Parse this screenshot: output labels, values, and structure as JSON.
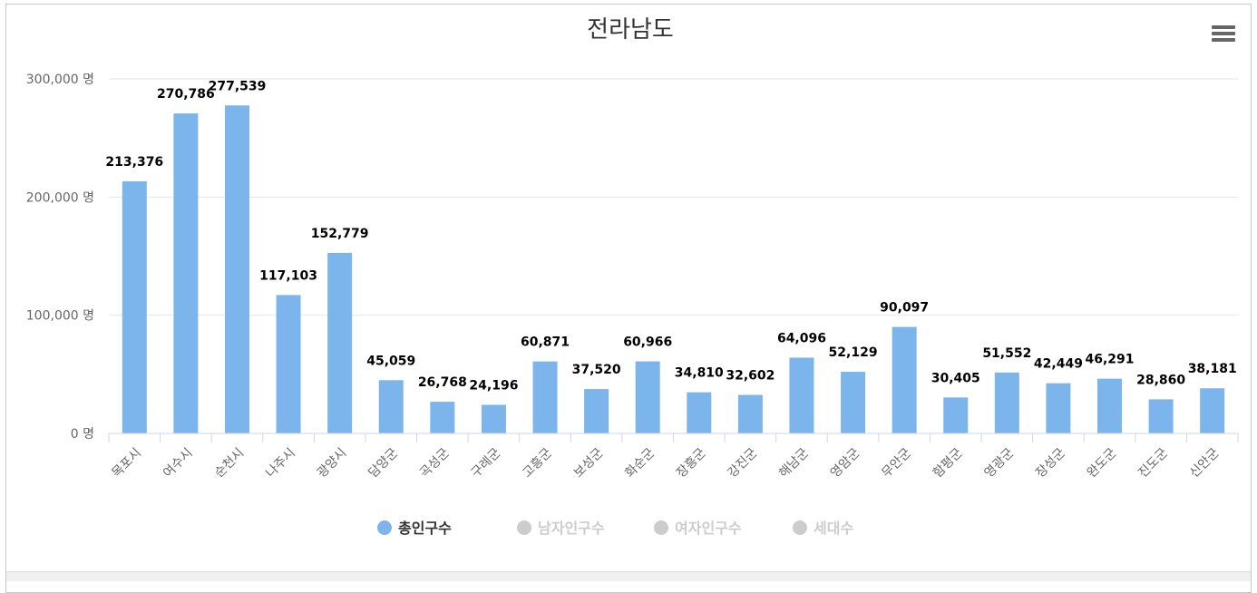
{
  "chart_data": {
    "type": "bar",
    "title": "전라남도",
    "ylim": [
      0,
      300000
    ],
    "yticks": [
      0,
      100000,
      200000,
      300000
    ],
    "ytick_labels": [
      "0 명",
      "100,000 명",
      "200,000 명",
      "300,000 명"
    ],
    "categories": [
      "목포시",
      "여수시",
      "순천시",
      "나주시",
      "광양시",
      "담양군",
      "곡성군",
      "구례군",
      "고흥군",
      "보성군",
      "화순군",
      "장흥군",
      "강진군",
      "해남군",
      "영암군",
      "무안군",
      "함평군",
      "영광군",
      "장성군",
      "완도군",
      "진도군",
      "신안군"
    ],
    "series": [
      {
        "name": "총인구수",
        "color": "#7cb5ec",
        "values": [
          213376,
          270786,
          277539,
          117103,
          152779,
          45059,
          26768,
          24196,
          60871,
          37520,
          60966,
          34810,
          32602,
          64096,
          52129,
          90097,
          30405,
          51552,
          42449,
          46291,
          28860,
          38181
        ],
        "value_labels": [
          "213,376",
          "270,786",
          "277,539",
          "117,103",
          "152,779",
          "45,059",
          "26,768",
          "24,196",
          "60,871",
          "37,520",
          "60,966",
          "34,810",
          "32,602",
          "64,096",
          "52,129",
          "90,097",
          "30,405",
          "51,552",
          "42,449",
          "46,291",
          "28,860",
          "38,181"
        ]
      }
    ],
    "legend": {
      "position": "bottom-center",
      "items": [
        {
          "name": "총인구수",
          "color": "#7cb5ec",
          "active": true
        },
        {
          "name": "남자인구수",
          "color": "#cccccc",
          "active": false
        },
        {
          "name": "여자인구수",
          "color": "#cccccc",
          "active": false
        },
        {
          "name": "세대수",
          "color": "#cccccc",
          "active": false
        }
      ]
    },
    "grid": true,
    "menu_icon": "hamburger-menu-icon"
  }
}
